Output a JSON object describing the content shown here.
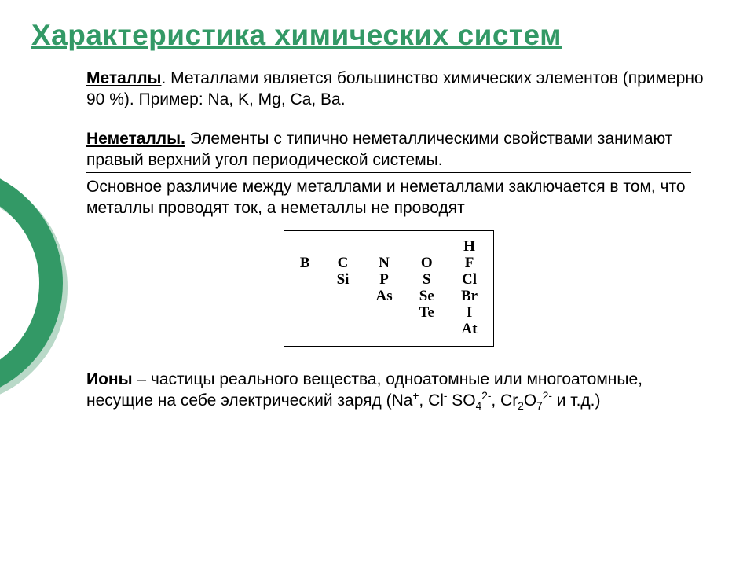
{
  "colors": {
    "accent": "#339966",
    "accent_shadow": "#b9d9c8",
    "text": "#000000",
    "bg": "#ffffff"
  },
  "title": "Характеристика химических систем",
  "title_fontsize": 37,
  "body_fontsize": 21,
  "body_font": "Verdana",
  "table_font": "Times New Roman",
  "table_fontsize": 19,
  "metals": {
    "label": "Металлы",
    "dot": ".",
    "text": "   Металлами является большинство химических элементов (примерно 90 %). Пример: Na, K, Mg, Ca, Ba."
  },
  "nonmetals": {
    "label": "Неметаллы.",
    "text": " Элементы с типично неметаллическими свойствами занимают правый верхний угол периодической системы."
  },
  "difference": "Основное различие между металлами и неметаллами заключается в том, что металлы проводят ток, а неметаллы не проводят",
  "elements": {
    "cols": [
      [
        "",
        "B",
        "",
        "",
        "",
        ""
      ],
      [
        "",
        "C",
        "Si",
        "",
        "",
        ""
      ],
      [
        "",
        "N",
        "P",
        "As",
        "",
        ""
      ],
      [
        "",
        "O",
        "S",
        "Se",
        "Te",
        ""
      ],
      [
        "H",
        "F",
        "Cl",
        "Br",
        "I",
        "At"
      ]
    ]
  },
  "ions": {
    "label": "Ионы",
    "text_before": " – частицы реального вещества, одноатомные или многоатомные, несущие на себе электрический заряд (Na",
    "na_sup": "+",
    "mid1": ", Cl",
    "cl_sup": "-",
    "mid2": " SO",
    "so_sub": "4",
    "so_sup": "2-",
    "mid3": ", Cr",
    "cr_sub1": "2",
    "mid4": "O",
    "cr_sub2": "7",
    "cr_sup": "2-",
    "tail": "  и т.д.)"
  }
}
